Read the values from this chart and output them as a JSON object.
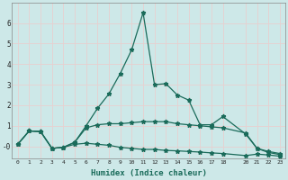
{
  "xlabel": "Humidex (Indice chaleur)",
  "background_color": "#cde8e8",
  "grid_color": "#e8d0d0",
  "line_color": "#1a6b5a",
  "xlim": [
    -0.5,
    23.5
  ],
  "ylim": [
    -0.6,
    7.0
  ],
  "yticks": [
    0,
    1,
    2,
    3,
    4,
    5,
    6
  ],
  "ytick_labels": [
    "-0",
    "1",
    "2",
    "3",
    "4",
    "5",
    "6"
  ],
  "xticks": [
    0,
    1,
    2,
    3,
    4,
    5,
    6,
    7,
    8,
    9,
    10,
    11,
    12,
    13,
    14,
    15,
    16,
    17,
    18,
    20,
    21,
    22,
    23
  ],
  "peak_line_x": [
    0,
    1,
    2,
    3,
    4,
    5,
    6,
    7,
    8,
    9,
    10,
    11,
    12,
    13,
    14,
    15,
    16,
    17,
    18,
    20,
    21,
    22,
    23
  ],
  "peak_line_y": [
    0.1,
    0.75,
    0.72,
    -0.1,
    -0.05,
    0.2,
    1.0,
    1.85,
    2.55,
    3.55,
    4.7,
    6.5,
    3.0,
    3.05,
    2.5,
    2.25,
    1.05,
    1.05,
    1.45,
    0.6,
    -0.1,
    -0.3,
    -0.4
  ],
  "line2_x": [
    0,
    1,
    2,
    3,
    4,
    5,
    6,
    7,
    8,
    9,
    10,
    11,
    12,
    13,
    14,
    15,
    16,
    17,
    18,
    20,
    21,
    22,
    23
  ],
  "line2_y": [
    0.1,
    0.75,
    0.72,
    -0.1,
    -0.05,
    0.2,
    0.9,
    1.05,
    1.1,
    1.1,
    1.15,
    1.2,
    1.2,
    1.2,
    1.1,
    1.05,
    1.0,
    0.95,
    0.9,
    0.65,
    -0.1,
    -0.25,
    -0.35
  ],
  "line3_x": [
    0,
    1,
    2,
    3,
    4,
    5,
    6,
    7,
    8,
    9,
    10,
    11,
    12,
    13,
    14,
    15,
    16,
    17,
    18,
    20,
    21,
    22,
    23
  ],
  "line3_y": [
    0.1,
    0.75,
    0.72,
    -0.1,
    -0.05,
    0.1,
    0.15,
    0.1,
    0.05,
    -0.05,
    -0.1,
    -0.15,
    -0.15,
    -0.2,
    -0.22,
    -0.25,
    -0.28,
    -0.32,
    -0.35,
    -0.45,
    -0.38,
    -0.42,
    -0.48
  ]
}
